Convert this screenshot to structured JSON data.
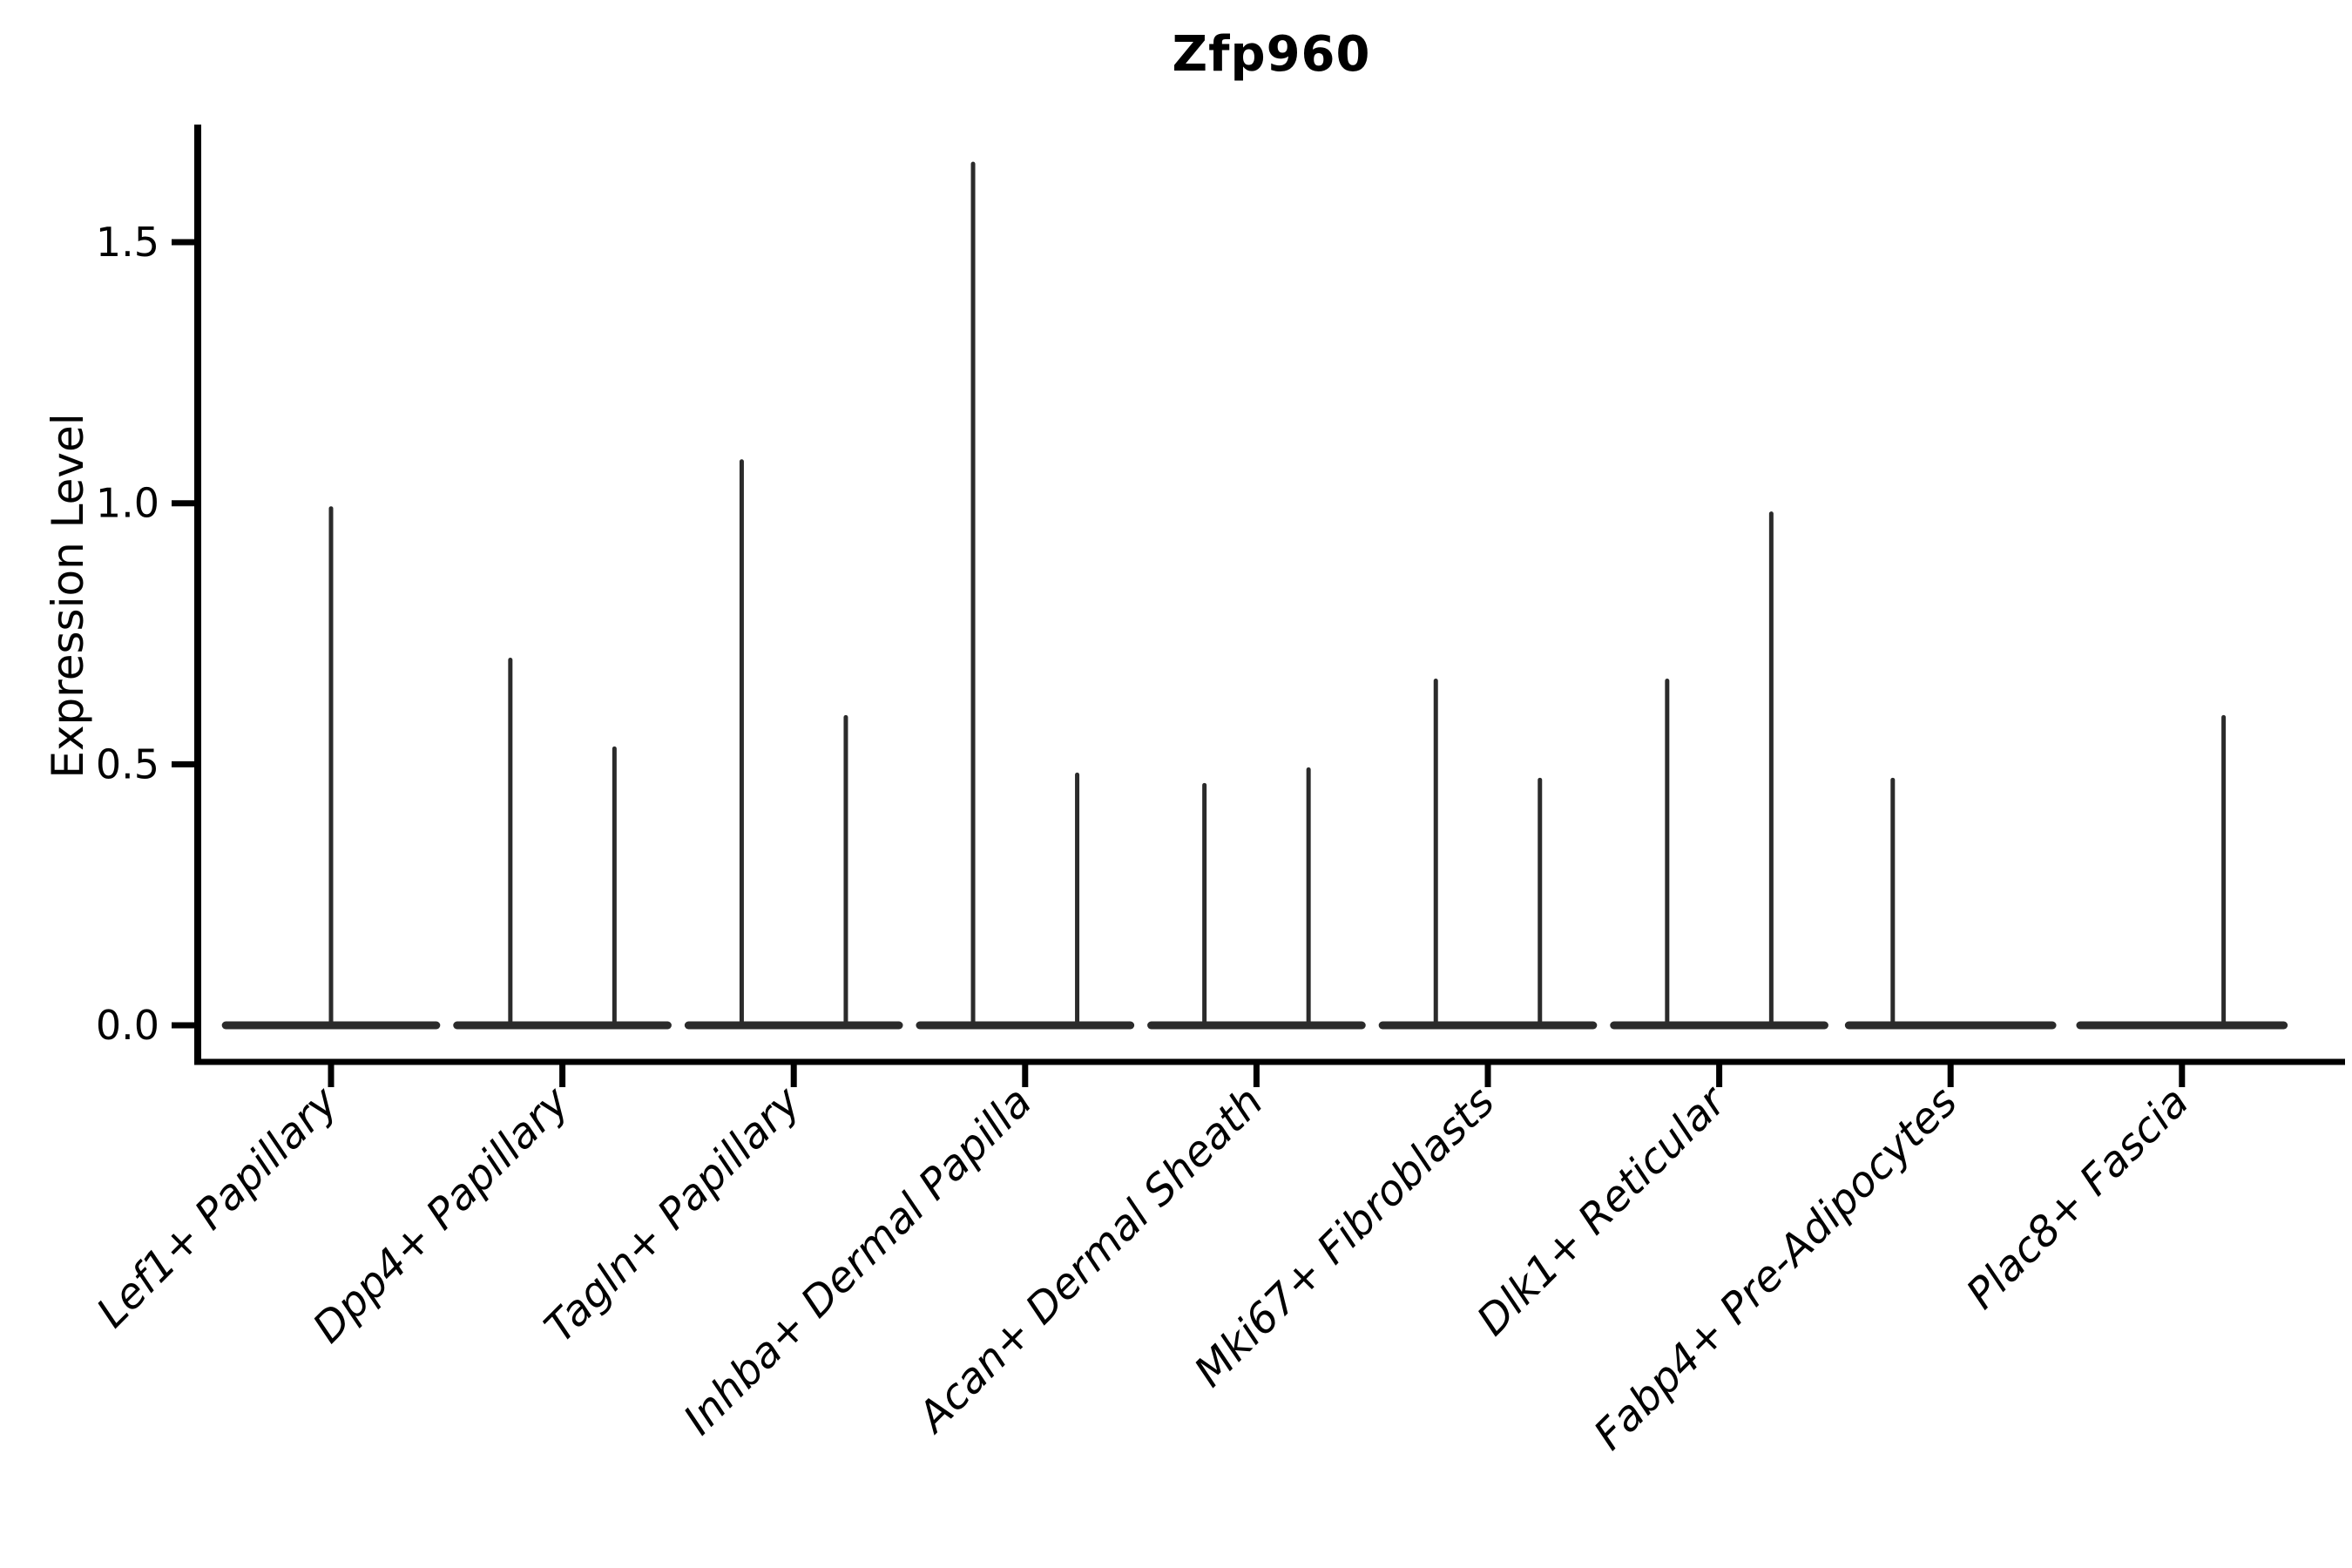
{
  "title": "Zfp960",
  "axes": {
    "ylabel": "Expression Level",
    "ytick_labels": [
      "0.0",
      "0.5",
      "1.0",
      "1.5"
    ]
  },
  "chart_data": {
    "type": "violin",
    "title": "Zfp960",
    "xlabel": "",
    "ylabel": "Expression Level",
    "ylim": [
      -0.07,
      1.73
    ],
    "yticks": [
      0.0,
      0.5,
      1.0,
      1.5
    ],
    "grid": false,
    "legend": "none",
    "description": "Single-gene expression violin plot; each cluster shows a wide flat density base at 0 with thin spikes rising to the expression maxima of the few expressing cells.",
    "categories": [
      "Lef1+ Papillary",
      "Dpp4+ Papillary",
      "Tagln+ Papillary",
      "Inhba+ Dermal Papilla",
      "Acan+ Dermal Sheath",
      "Mki67+ Fibroblasts",
      "Dlk1+ Reticular",
      "Fabp4+ Pre-Adipocytes",
      "Plac8+ Fascia"
    ],
    "violins": [
      {
        "category": "Lef1+ Papillary",
        "base_halfwidth": 0.455,
        "spikes": [
          {
            "offset": 0.0,
            "max": 0.99
          }
        ]
      },
      {
        "category": "Dpp4+ Papillary",
        "base_halfwidth": 0.455,
        "spikes": [
          {
            "offset": -0.225,
            "max": 0.7
          },
          {
            "offset": 0.225,
            "max": 0.53
          }
        ]
      },
      {
        "category": "Tagln+ Papillary",
        "base_halfwidth": 0.455,
        "spikes": [
          {
            "offset": -0.225,
            "max": 1.08
          },
          {
            "offset": 0.225,
            "max": 0.59
          }
        ]
      },
      {
        "category": "Inhba+ Dermal Papilla",
        "base_halfwidth": 0.455,
        "spikes": [
          {
            "offset": -0.225,
            "max": 1.65
          },
          {
            "offset": 0.225,
            "max": 0.48
          }
        ]
      },
      {
        "category": "Acan+ Dermal Sheath",
        "base_halfwidth": 0.455,
        "spikes": [
          {
            "offset": -0.225,
            "max": 0.46
          },
          {
            "offset": 0.225,
            "max": 0.49
          }
        ]
      },
      {
        "category": "Mki67+ Fibroblasts",
        "base_halfwidth": 0.455,
        "spikes": [
          {
            "offset": -0.225,
            "max": 0.66
          },
          {
            "offset": 0.225,
            "max": 0.47
          }
        ]
      },
      {
        "category": "Dlk1+ Reticular",
        "base_halfwidth": 0.455,
        "spikes": [
          {
            "offset": -0.225,
            "max": 0.66
          },
          {
            "offset": 0.225,
            "max": 0.98
          }
        ]
      },
      {
        "category": "Fabp4+ Pre-Adipocytes",
        "base_halfwidth": 0.44,
        "spikes": [
          {
            "offset": -0.25,
            "max": 0.47
          }
        ]
      },
      {
        "category": "Plac8+ Fascia",
        "base_halfwidth": 0.44,
        "spikes": [
          {
            "offset": 0.18,
            "max": 0.59
          }
        ]
      }
    ],
    "colors": {
      "violin_line": "#2b2b2b",
      "axis": "#000000",
      "text": "#000000",
      "background": "#ffffff"
    }
  }
}
